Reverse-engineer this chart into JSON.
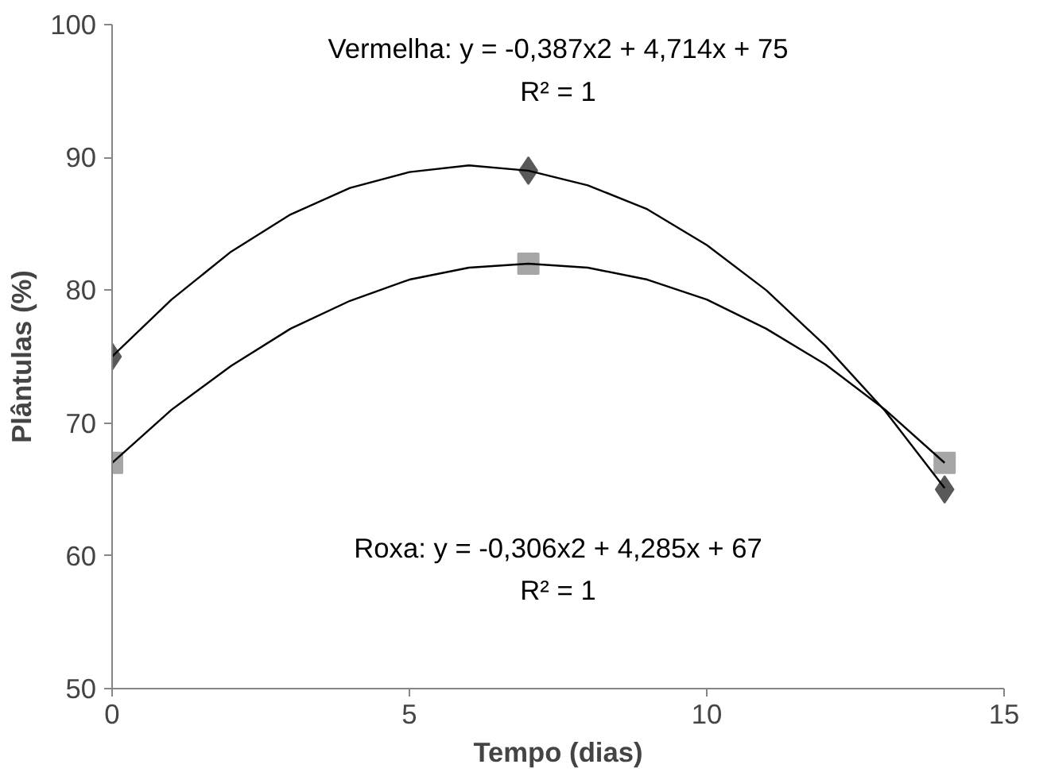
{
  "chart_data": {
    "type": "scatter",
    "xlabel": "Tempo (dias)",
    "ylabel": "Plântulas (%)",
    "xlim": [
      0,
      15
    ],
    "xticks": [
      0,
      5,
      10,
      15
    ],
    "ylim": [
      50,
      100
    ],
    "yticks": [
      50,
      60,
      70,
      80,
      90,
      100
    ],
    "grid": false,
    "series": [
      {
        "type": "line",
        "color": "#000000",
        "x": [
          0,
          1,
          2,
          3,
          4,
          5,
          6,
          7,
          8,
          9,
          10,
          11,
          12,
          13,
          14
        ],
        "values": [
          75,
          79.3,
          82.9,
          85.7,
          87.7,
          88.9,
          89.4,
          89.0,
          87.9,
          86.1,
          83.4,
          80.0,
          75.8,
          70.9,
          65.1
        ]
      },
      {
        "type": "line",
        "color": "#000000",
        "x": [
          0,
          1,
          2,
          3,
          4,
          5,
          6,
          7,
          8,
          9,
          10,
          11,
          12,
          13,
          14
        ],
        "values": [
          67,
          71.0,
          74.3,
          77.1,
          79.2,
          80.8,
          81.7,
          82.0,
          81.7,
          80.8,
          79.3,
          77.1,
          74.4,
          71.0,
          67.0
        ]
      },
      {
        "color": "#595959",
        "marker": "diamond",
        "x": [
          0,
          7,
          14
        ],
        "values": [
          75,
          89,
          65
        ]
      },
      {
        "color": "#a6a6a6",
        "marker": "square",
        "x": [
          0,
          7,
          14
        ],
        "values": [
          67,
          82,
          67
        ]
      }
    ],
    "annotations": [
      "Vermelha: y = -0,387x2 + 4,714x + 75",
      "R² = 1",
      "Roxa: y = -0,306x2 + 4,285x + 67",
      "R² = 1"
    ]
  }
}
